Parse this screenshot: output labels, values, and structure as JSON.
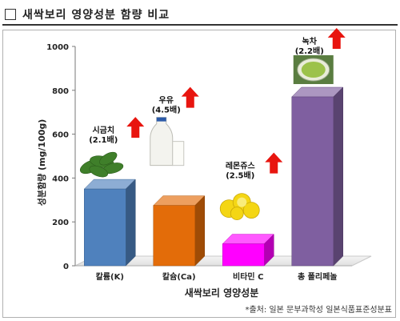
{
  "header": {
    "title": "새싹보리 영양성분 함량 비교"
  },
  "source": "*출처: 일본 문부과학성 일본식품표준성분표",
  "colors": {
    "accent_arrow": "#e8150f"
  },
  "chart_data": {
    "type": "bar",
    "xlabel": "새싹보리 영양성분",
    "ylabel": "성분함량 (mg/100g)",
    "ylim": [
      0,
      1000
    ],
    "yticks": [
      0,
      200,
      400,
      600,
      800,
      1000
    ],
    "grid": false,
    "categories": [
      "칼륨(K)",
      "칼슘(Ca)",
      "비타민 C",
      "총 폴리페놀"
    ],
    "values": [
      350,
      275,
      100,
      770
    ],
    "bar_colors": [
      "#4f81bd",
      "#e36c09",
      "#ff00ff",
      "#7f5fa0"
    ],
    "comparisons": [
      {
        "label_line1": "시금치",
        "label_line2": "(2.1배)",
        "image_icon": "spinach-icon"
      },
      {
        "label_line1": "우유",
        "label_line2": "(4.5배)",
        "image_icon": "milk-icon"
      },
      {
        "label_line1": "레몬쥬스",
        "label_line2": "(2.5배)",
        "image_icon": "lemon-icon"
      },
      {
        "label_line1": "녹차",
        "label_line2": "(2.2배)",
        "image_icon": "green-tea-icon"
      }
    ]
  }
}
